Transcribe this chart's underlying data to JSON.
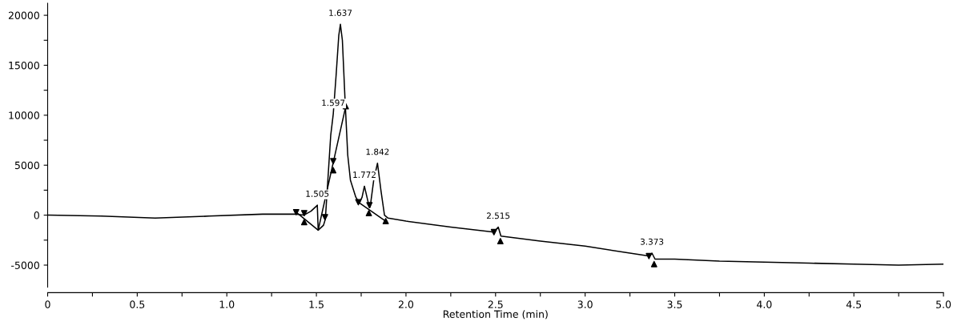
{
  "chart_data": {
    "type": "line",
    "xlabel": "Retention Time (min)",
    "xlim": [
      0,
      5
    ],
    "ylim": [
      -7200,
      21200
    ],
    "xticks": [
      0,
      {
        "value": 0.25,
        "label": null
      },
      {
        "value": 0.5,
        "label": "0.5"
      },
      {
        "value": 0.75,
        "label": null
      },
      {
        "value": 1,
        "label": "1.0"
      },
      {
        "value": 1.25,
        "label": null
      },
      {
        "value": 1.5,
        "label": "1.5"
      },
      {
        "value": 1.75,
        "label": null
      },
      {
        "value": 2,
        "label": "2.0"
      },
      {
        "value": 2.25,
        "label": null
      },
      {
        "value": 2.5,
        "label": "2.5"
      },
      {
        "value": 2.75,
        "label": null
      },
      {
        "value": 3,
        "label": "3.0"
      },
      {
        "value": 3.25,
        "label": null
      },
      {
        "value": 3.5,
        "label": "3.5"
      },
      {
        "value": 3.75,
        "label": null
      },
      {
        "value": 4,
        "label": "4.0"
      },
      {
        "value": 4.25,
        "label": null
      },
      {
        "value": 4.5,
        "label": "4.5"
      },
      {
        "value": 4.75,
        "label": null
      },
      {
        "value": 5,
        "label": "5.0"
      }
    ],
    "yticks": [
      -5000,
      {
        "value": -2500,
        "label": null
      },
      0,
      {
        "value": 2500,
        "label": null
      },
      5000,
      {
        "value": 7500,
        "label": null
      },
      10000,
      {
        "value": 12500,
        "label": null
      },
      15000,
      {
        "value": 17500,
        "label": null
      },
      20000
    ],
    "grid": false,
    "series": [
      {
        "color": "#000000",
        "marker": "none",
        "line_style": "solid",
        "x": [
          0,
          0.3,
          0.6,
          0.9,
          1.2,
          1.38,
          1.43,
          1.47,
          1.5,
          1.505,
          1.51,
          1.54,
          1.55,
          1.58,
          1.594,
          1.61,
          1.625,
          1.634,
          1.645,
          1.66,
          1.675,
          1.69,
          1.72,
          1.74,
          1.755,
          1.768,
          1.79,
          1.8,
          1.82,
          1.841,
          1.86,
          1.88,
          1.9,
          2.0,
          2.25,
          2.49,
          2.515,
          2.53,
          2.75,
          3.0,
          3.25,
          3.36,
          3.373,
          3.39,
          3.5,
          3.75,
          4.0,
          4.25,
          4.5,
          4.75,
          5.0
        ],
        "values": [
          0,
          -100,
          -300,
          -100,
          100,
          100,
          0,
          400,
          900,
          1000,
          -1500,
          -1000,
          -400,
          8000,
          10100,
          14000,
          18000,
          19100,
          17500,
          11500,
          6000,
          3500,
          1800,
          1200,
          1800,
          2900,
          1200,
          800,
          3500,
          5200,
          2500,
          0,
          -300,
          -600,
          -1200,
          -1700,
          -1200,
          -2100,
          -2600,
          -3100,
          -3800,
          -4100,
          -3800,
          -4400,
          -4400,
          -4600,
          -4700,
          -4800,
          -4900,
          -5000,
          -4900
        ]
      },
      {
        "color": "#000000",
        "marker": "none",
        "line_style": "solid",
        "x": [
          1.387,
          1.51,
          1.51,
          1.664,
          1.67,
          1.734,
          1.887
        ],
        "values": [
          300,
          -1500,
          -1500,
          10900,
          null,
          1300,
          -600
        ]
      },
      {
        "type": "scatter",
        "color": "#000000",
        "marker": "triangle",
        "x": [
          1.432,
          1.594,
          1.664,
          1.793,
          1.887,
          2.527,
          3.385
        ],
        "values": [
          -700,
          4500,
          10900,
          200,
          -600,
          -2600,
          -4900
        ]
      },
      {
        "type": "scatter",
        "color": "#000000",
        "marker": "triangle-down",
        "x": [
          1.387,
          1.432,
          1.548,
          1.594,
          1.734,
          1.796,
          2.491,
          3.356
        ],
        "values": [
          300,
          200,
          -200,
          5400,
          1300,
          1000,
          -1700,
          -4100
        ]
      }
    ],
    "annotations": [
      {
        "text": "1.505",
        "x": 1.505,
        "y": 1000
      },
      {
        "text": "1.597",
        "x": 1.594,
        "y": 10100
      },
      {
        "text": "1.637",
        "x": 1.634,
        "y": 19100
      },
      {
        "text": "1.772",
        "x": 1.768,
        "y": 2900
      },
      {
        "text": "1.842",
        "x": 1.841,
        "y": 5200
      },
      {
        "text": "2.515",
        "x": 2.515,
        "y": -1200
      },
      {
        "text": "3.373",
        "x": 3.373,
        "y": -3800
      }
    ]
  }
}
